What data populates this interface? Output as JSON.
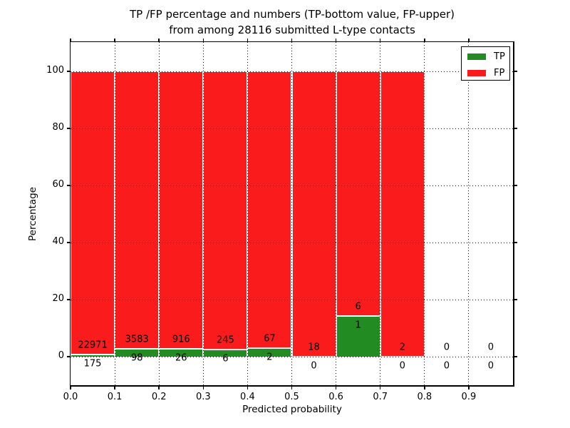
{
  "figure": {
    "title_line1": "TP /FP percentage and numbers (TP-bottom value, FP-upper)",
    "title_line2": "from among 28116 submitted L-type contacts"
  },
  "chart_data": {
    "type": "bar",
    "stacked": true,
    "normalized_to_percent": true,
    "title": "TP /FP percentage and numbers (TP-bottom value, FP-upper) from among 28116 submitted L-type contacts",
    "xlabel": "Predicted probability",
    "ylabel": "Percentage",
    "xlim": [
      0.0,
      1.0
    ],
    "ylim": [
      -10,
      110
    ],
    "x_tick_labels": [
      "0.0",
      "0.1",
      "0.2",
      "0.3",
      "0.4",
      "0.5",
      "0.6",
      "0.7",
      "0.8",
      "0.9"
    ],
    "y_tick_values": [
      0,
      20,
      40,
      60,
      80,
      100
    ],
    "grid": {
      "visible": true,
      "style": "dotted",
      "color": "#000000"
    },
    "total_contacts": 28116,
    "legend": {
      "position": "upper right",
      "entries": [
        {
          "label": "TP",
          "color": "#228b22"
        },
        {
          "label": "FP",
          "color": "#fa1c1c"
        }
      ]
    },
    "categories": [
      "0.0-0.1",
      "0.1-0.2",
      "0.2-0.3",
      "0.3-0.4",
      "0.4-0.5",
      "0.5-0.6",
      "0.6-0.7",
      "0.7-0.8",
      "0.8-0.9",
      "0.9-1.0"
    ],
    "bins": [
      {
        "x_start": 0.0,
        "x_end": 0.1,
        "tp": 175,
        "fp": 22971
      },
      {
        "x_start": 0.1,
        "x_end": 0.2,
        "tp": 98,
        "fp": 3583
      },
      {
        "x_start": 0.2,
        "x_end": 0.3,
        "tp": 26,
        "fp": 916
      },
      {
        "x_start": 0.3,
        "x_end": 0.4,
        "tp": 6,
        "fp": 245
      },
      {
        "x_start": 0.4,
        "x_end": 0.5,
        "tp": 2,
        "fp": 67
      },
      {
        "x_start": 0.5,
        "x_end": 0.6,
        "tp": 0,
        "fp": 18
      },
      {
        "x_start": 0.6,
        "x_end": 0.7,
        "tp": 1,
        "fp": 6
      },
      {
        "x_start": 0.7,
        "x_end": 0.8,
        "tp": 0,
        "fp": 2
      },
      {
        "x_start": 0.8,
        "x_end": 0.9,
        "tp": 0,
        "fp": 0
      },
      {
        "x_start": 0.9,
        "x_end": 1.0,
        "tp": 0,
        "fp": 0
      }
    ],
    "colors": {
      "tp": "#228b22",
      "fp": "#fa1c1c"
    }
  }
}
